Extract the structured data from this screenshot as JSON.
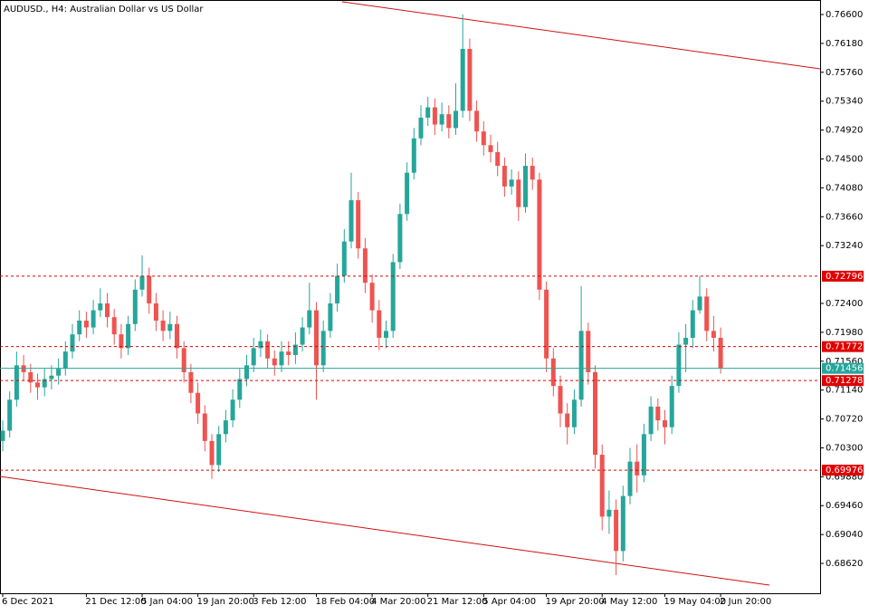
{
  "chart_data": {
    "type": "candlestick",
    "title": "AUDUSD., H4:  Australian Dollar vs US Dollar",
    "up_color": "#26a69a",
    "down_color": "#ef5350",
    "categories": [
      "6 Dec 2021",
      null,
      null,
      null,
      null,
      null,
      null,
      null,
      null,
      null,
      null,
      null,
      "21 Dec 12:00",
      null,
      null,
      null,
      null,
      null,
      null,
      null,
      "5 Jan 04:00",
      null,
      null,
      null,
      null,
      null,
      null,
      null,
      "19 Jan 20:00",
      null,
      null,
      null,
      null,
      null,
      null,
      null,
      "3 Feb 12:00",
      null,
      null,
      null,
      null,
      null,
      null,
      null,
      null,
      "18 Feb 04:00",
      null,
      null,
      null,
      null,
      null,
      null,
      null,
      "4 Mar 20:00",
      null,
      null,
      null,
      null,
      null,
      null,
      null,
      "21 Mar 12:00",
      null,
      null,
      null,
      null,
      null,
      null,
      null,
      "5 Apr 04:00",
      null,
      null,
      null,
      null,
      null,
      null,
      null,
      null,
      "19 Apr 20:00",
      null,
      null,
      null,
      null,
      null,
      null,
      null,
      "4 May 12:00",
      null,
      null,
      null,
      null,
      null,
      null,
      null,
      null,
      "19 May 04:00",
      null,
      null,
      null,
      null,
      null,
      null,
      null,
      "2 Jun 20:00"
    ],
    "open": [
      0.704,
      0.7055,
      0.71,
      0.715,
      0.714,
      0.7125,
      0.7118,
      0.713,
      0.7135,
      0.7145,
      0.717,
      0.7195,
      0.7215,
      0.7205,
      0.723,
      0.724,
      0.722,
      0.7195,
      0.7175,
      0.721,
      0.726,
      0.728,
      0.724,
      0.7215,
      0.72,
      0.721,
      0.7175,
      0.714,
      0.711,
      0.708,
      0.704,
      0.7005,
      0.705,
      0.707,
      0.71,
      0.713,
      0.715,
      0.7175,
      0.7185,
      0.716,
      0.715,
      0.717,
      0.7165,
      0.718,
      0.7205,
      0.723,
      0.715,
      0.72,
      0.724,
      0.728,
      0.733,
      0.739,
      0.732,
      0.727,
      0.723,
      0.719,
      0.72,
      0.73,
      0.737,
      0.743,
      0.748,
      0.751,
      0.7525,
      0.75,
      0.7515,
      0.7495,
      0.752,
      0.761,
      0.752,
      0.749,
      0.747,
      0.746,
      0.744,
      0.741,
      0.742,
      0.738,
      0.744,
      0.742,
      0.726,
      0.716,
      0.712,
      0.708,
      0.706,
      0.71,
      0.72,
      0.714,
      0.702,
      0.693,
      0.694,
      0.688,
      0.696,
      0.701,
      0.699,
      0.705,
      0.709,
      0.707,
      0.706,
      0.712,
      0.718,
      0.719,
      0.723,
      0.725,
      0.72,
      0.719
    ],
    "high": [
      0.707,
      0.7112,
      0.717,
      0.7165,
      0.7152,
      0.7138,
      0.7145,
      0.715,
      0.716,
      0.7185,
      0.721,
      0.723,
      0.7228,
      0.7245,
      0.7262,
      0.7255,
      0.7232,
      0.721,
      0.7222,
      0.7275,
      0.731,
      0.7292,
      0.7255,
      0.723,
      0.7228,
      0.7222,
      0.7185,
      0.7152,
      0.7125,
      0.7092,
      0.705,
      0.7062,
      0.7085,
      0.7115,
      0.7145,
      0.7165,
      0.719,
      0.7202,
      0.7195,
      0.7172,
      0.7185,
      0.7185,
      0.7198,
      0.722,
      0.727,
      0.7242,
      0.7215,
      0.7255,
      0.7298,
      0.7348,
      0.743,
      0.7402,
      0.7335,
      0.7282,
      0.7245,
      0.7215,
      0.7312,
      0.7385,
      0.7445,
      0.7495,
      0.7528,
      0.754,
      0.7538,
      0.7532,
      0.7528,
      0.756,
      0.766,
      0.7625,
      0.7535,
      0.7505,
      0.7485,
      0.7475,
      0.7452,
      0.7435,
      0.7432,
      0.7458,
      0.7452,
      0.743,
      0.7272,
      0.7175,
      0.7135,
      0.7095,
      0.7115,
      0.7265,
      0.7212,
      0.715,
      0.7035,
      0.6968,
      0.6955,
      0.6975,
      0.703,
      0.7035,
      0.7065,
      0.7105,
      0.7102,
      0.7085,
      0.7135,
      0.7198,
      0.721,
      0.7245,
      0.728,
      0.7262,
      0.7222,
      0.7205
    ],
    "low": [
      0.7025,
      0.7045,
      0.709,
      0.7128,
      0.711,
      0.71,
      0.7105,
      0.7115,
      0.7122,
      0.7135,
      0.716,
      0.7185,
      0.719,
      0.7195,
      0.722,
      0.7205,
      0.718,
      0.716,
      0.7165,
      0.72,
      0.725,
      0.7225,
      0.72,
      0.7185,
      0.7188,
      0.716,
      0.7125,
      0.7095,
      0.7065,
      0.7025,
      0.6985,
      0.6995,
      0.7038,
      0.706,
      0.7088,
      0.712,
      0.714,
      0.7162,
      0.7145,
      0.7135,
      0.714,
      0.715,
      0.7152,
      0.717,
      0.7195,
      0.71,
      0.714,
      0.719,
      0.7228,
      0.727,
      0.732,
      0.7305,
      0.7255,
      0.7212,
      0.7172,
      0.7175,
      0.719,
      0.729,
      0.736,
      0.742,
      0.747,
      0.7498,
      0.7485,
      0.749,
      0.748,
      0.7485,
      0.751,
      0.7505,
      0.7475,
      0.7455,
      0.7445,
      0.7425,
      0.7395,
      0.7398,
      0.736,
      0.7372,
      0.7405,
      0.7245,
      0.714,
      0.7105,
      0.706,
      0.7035,
      0.705,
      0.709,
      0.7122,
      0.7,
      0.691,
      0.6905,
      0.6845,
      0.6865,
      0.6948,
      0.6965,
      0.698,
      0.704,
      0.7055,
      0.7035,
      0.705,
      0.711,
      0.714,
      0.7175,
      0.7225,
      0.7185,
      0.717,
      0.7138
    ],
    "close": [
      0.7055,
      0.71,
      0.715,
      0.714,
      0.7125,
      0.7118,
      0.713,
      0.7135,
      0.7145,
      0.717,
      0.7195,
      0.7215,
      0.7205,
      0.723,
      0.724,
      0.722,
      0.7195,
      0.7175,
      0.721,
      0.726,
      0.728,
      0.724,
      0.7215,
      0.72,
      0.721,
      0.7175,
      0.714,
      0.711,
      0.708,
      0.704,
      0.7005,
      0.705,
      0.707,
      0.71,
      0.713,
      0.715,
      0.7175,
      0.7185,
      0.716,
      0.715,
      0.717,
      0.7165,
      0.718,
      0.7205,
      0.723,
      0.715,
      0.72,
      0.724,
      0.728,
      0.733,
      0.739,
      0.732,
      0.727,
      0.723,
      0.719,
      0.72,
      0.73,
      0.737,
      0.743,
      0.748,
      0.751,
      0.7525,
      0.75,
      0.7515,
      0.7495,
      0.752,
      0.761,
      0.752,
      0.749,
      0.747,
      0.746,
      0.744,
      0.741,
      0.742,
      0.738,
      0.744,
      0.742,
      0.726,
      0.716,
      0.712,
      0.708,
      0.706,
      0.71,
      0.72,
      0.714,
      0.702,
      0.693,
      0.694,
      0.688,
      0.696,
      0.701,
      0.699,
      0.705,
      0.709,
      0.707,
      0.706,
      0.712,
      0.718,
      0.719,
      0.723,
      0.725,
      0.72,
      0.719,
      0.7146
    ],
    "ylim": [
      0.76811,
      0.68186
    ],
    "yticks": [
      {
        "value": 0.766,
        "label": "0.76600"
      },
      {
        "value": 0.7618,
        "label": "0.76180"
      },
      {
        "value": 0.7576,
        "label": "0.75760"
      },
      {
        "value": 0.7534,
        "label": "0.75340"
      },
      {
        "value": 0.7492,
        "label": "0.74920"
      },
      {
        "value": 0.745,
        "label": "0.74500"
      },
      {
        "value": 0.7408,
        "label": "0.74080"
      },
      {
        "value": 0.7366,
        "label": "0.73660"
      },
      {
        "value": 0.7324,
        "label": "0.73240"
      },
      {
        "value": 0.724,
        "label": "0.72400"
      },
      {
        "value": 0.7198,
        "label": "0.71980"
      },
      {
        "value": 0.7156,
        "label": "0.71560"
      },
      {
        "value": 0.7114,
        "label": "0.71140"
      },
      {
        "value": 0.7072,
        "label": "0.70720"
      },
      {
        "value": 0.703,
        "label": "0.70300"
      },
      {
        "value": 0.6988,
        "label": "0.69880"
      },
      {
        "value": 0.6946,
        "label": "0.69460"
      },
      {
        "value": 0.6904,
        "label": "0.69040"
      },
      {
        "value": 0.6862,
        "label": "0.68620"
      }
    ],
    "levels": [
      {
        "value": 0.72796,
        "color": "#e00000",
        "dashed": true
      },
      {
        "value": 0.71772,
        "color": "#e00000",
        "dashed": true
      },
      {
        "value": 0.71456,
        "color": "#26a69a",
        "dashed": false
      },
      {
        "value": 0.71278,
        "color": "#e00000",
        "dashed": true
      },
      {
        "value": 0.69976,
        "color": "#e00000",
        "dashed": true
      }
    ],
    "grid": false
  }
}
